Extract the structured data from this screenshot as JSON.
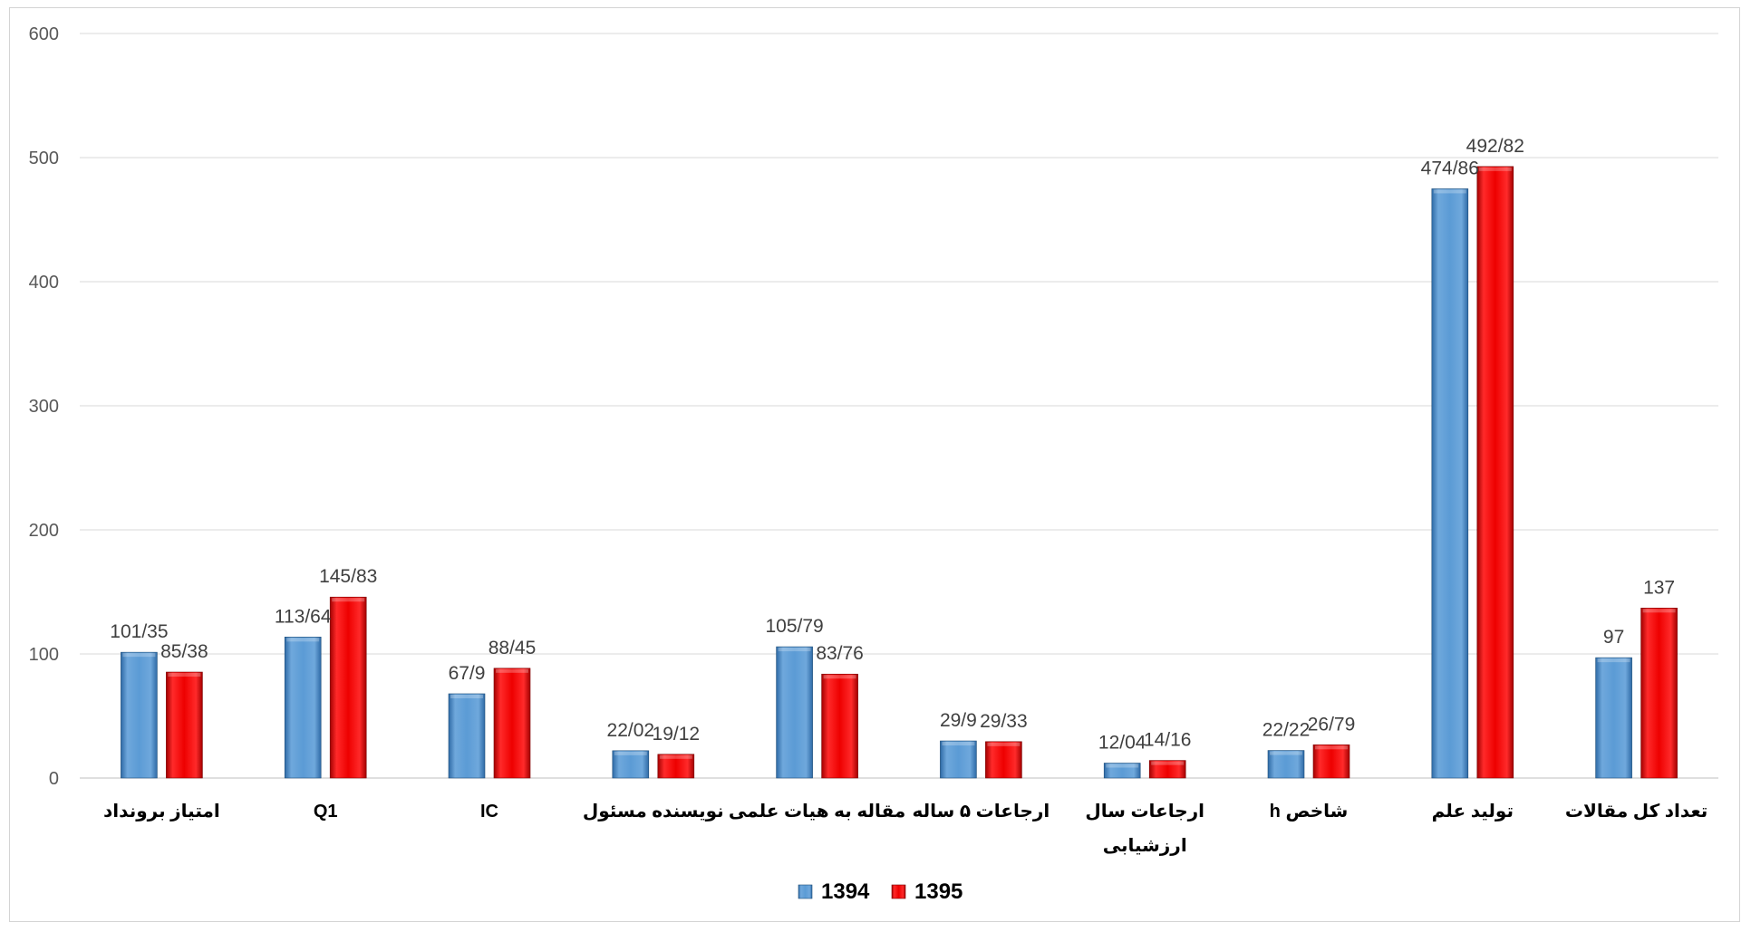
{
  "chart_data": {
    "type": "bar",
    "categories": [
      [
        "امتیاز برونداد"
      ],
      [
        "Q1"
      ],
      [
        "IC"
      ],
      [
        "نویسنده مسئول"
      ],
      [
        "مقاله به هیات علمی"
      ],
      [
        "ارجاعات ۵ ساله"
      ],
      [
        "ارجاعات سال",
        "ارزشیابی"
      ],
      [
        "شاخص h"
      ],
      [
        "تولید علم"
      ],
      [
        "تعداد کل مقالات"
      ]
    ],
    "series": [
      {
        "name": "1394",
        "color": "#5b9bd5",
        "values": [
          101.35,
          113.64,
          67.9,
          22.02,
          105.79,
          29.9,
          12.04,
          22.22,
          474.86,
          97
        ],
        "labels": [
          "101/35",
          "113/64",
          "67/9",
          "22/02",
          "105/79",
          "29/9",
          "12/04",
          "22/22",
          "474/86",
          "97"
        ]
      },
      {
        "name": "1395",
        "color": "#ff0000",
        "values": [
          85.38,
          145.83,
          88.45,
          19.12,
          83.76,
          29.33,
          14.16,
          26.79,
          492.82,
          137
        ],
        "labels": [
          "85/38",
          "145/83",
          "88/45",
          "19/12",
          "83/76",
          "29/33",
          "14/16",
          "26/79",
          "492/82",
          "137"
        ]
      }
    ],
    "ylim": [
      0,
      600
    ],
    "yticks": [
      0,
      100,
      200,
      300,
      400,
      500,
      600
    ],
    "grid": true,
    "legend": "bottom-center",
    "title": "",
    "xlabel": "",
    "ylabel": ""
  }
}
